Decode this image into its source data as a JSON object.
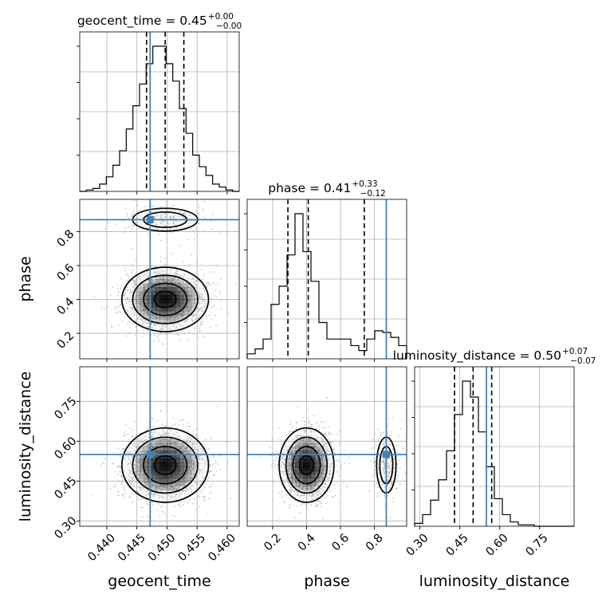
{
  "chart_data": {
    "type": "corner",
    "parameters": [
      "geocent_time",
      "phase",
      "luminosity_distance"
    ],
    "titles": [
      {
        "param": "geocent_time",
        "text": "geocent_time = 0.45",
        "upper": "+0.00",
        "lower": "−0.00"
      },
      {
        "param": "phase",
        "text": "phase = 0.41",
        "upper": "+0.33",
        "lower": "−0.12"
      },
      {
        "param": "luminosity_distance",
        "text": "luminosity_distance = 0.50",
        "upper": "+0.07",
        "lower": "−0.07"
      }
    ],
    "ranges": {
      "geocent_time": [
        0.4355,
        0.462
      ],
      "phase": [
        0.05,
        0.99
      ],
      "luminosity_distance": [
        0.28,
        0.88
      ]
    },
    "ticks": {
      "geocent_time": {
        "values": [
          0.44,
          0.445,
          0.45,
          0.455,
          0.46
        ],
        "labels": [
          "0.440",
          "0.445",
          "0.450",
          "0.455",
          "0.460"
        ]
      },
      "phase": {
        "values": [
          0.2,
          0.4,
          0.6,
          0.8
        ],
        "labels": [
          "0.2",
          "0.4",
          "0.6",
          "0.8"
        ]
      },
      "luminosity_distance": {
        "values": [
          0.3,
          0.45,
          0.6,
          0.75
        ],
        "labels": [
          "0.30",
          "0.45",
          "0.60",
          "0.75"
        ]
      }
    },
    "axis_labels": {
      "geocent_time": "geocent_time",
      "phase": "phase",
      "luminosity_distance": "luminosity_distance"
    },
    "truths": {
      "geocent_time": 0.4472,
      "phase": 0.87,
      "luminosity_distance": 0.55
    },
    "quantiles": {
      "geocent_time": [
        0.4466,
        0.4497,
        0.4528
      ],
      "phase": [
        0.29,
        0.41,
        0.74
      ],
      "luminosity_distance": [
        0.43,
        0.5,
        0.57
      ]
    },
    "histograms": {
      "geocent_time": {
        "edges_range": [
          0.4355,
          0.462
        ],
        "counts": [
          0,
          1,
          2,
          5,
          10,
          18,
          28,
          43,
          59,
          74,
          88,
          100,
          100,
          88,
          76,
          57,
          40,
          25,
          17,
          11,
          5,
          3,
          1,
          0
        ]
      },
      "phase": {
        "edges_range": [
          0.05,
          0.99
        ],
        "counts": [
          3,
          6,
          12,
          33,
          44,
          63,
          88,
          65,
          47,
          22,
          12,
          12,
          12,
          8,
          5,
          12,
          17,
          16,
          13,
          8
        ]
      },
      "luminosity_distance": {
        "edges_range": [
          0.28,
          0.88
        ],
        "counts": [
          2,
          8,
          18,
          32,
          52,
          77,
          100,
          89,
          65,
          41,
          19,
          8,
          3,
          1,
          1,
          0,
          0,
          0,
          0,
          0
        ]
      }
    },
    "grid": true,
    "style": {
      "truth_color": "#4682b4",
      "hist_color": "#000000",
      "quantile_color": "#000000",
      "scatter_color": "#9e9e9e"
    }
  }
}
